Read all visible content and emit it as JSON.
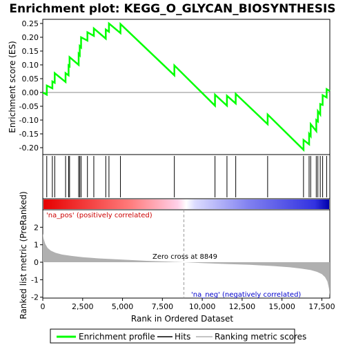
{
  "chart_data": {
    "type": "line",
    "title": "Enrichment plot: KEGG_O_GLYCAN_BIOSYNTHESIS",
    "x_label": "Rank in Ordered Dataset",
    "x_ticks": [
      0,
      2500,
      5000,
      7500,
      10000,
      12500,
      15000,
      17500
    ],
    "x_tick_labels": [
      "0",
      "2,500",
      "5,000",
      "7,500",
      "10,000",
      "12,500",
      "15,000",
      "17,500"
    ],
    "xlim": [
      0,
      18000
    ],
    "top_panel": {
      "ylabel": "Enrichment score (ES)",
      "ylim": [
        -0.225,
        0.265
      ],
      "y_ticks": [
        -0.2,
        -0.15,
        -0.1,
        -0.05,
        0.0,
        0.05,
        0.1,
        0.15,
        0.2,
        0.25
      ],
      "y_tick_labels": [
        "-0.20",
        "-0.15",
        "-0.10",
        "-0.05",
        "0.00",
        "0.05",
        "0.10",
        "0.15",
        "0.20",
        "0.25"
      ],
      "series": [
        {
          "name": "Enrichment profile",
          "color": "#00ff00",
          "x": [
            0,
            250,
            250,
            600,
            600,
            750,
            750,
            1430,
            1430,
            1620,
            1620,
            1680,
            1680,
            2250,
            2250,
            2320,
            2320,
            2400,
            2400,
            2800,
            2800,
            3200,
            3200,
            3950,
            3950,
            4150,
            4150,
            4870,
            4870,
            8250,
            8250,
            10800,
            10800,
            11550,
            11550,
            12100,
            12100,
            14100,
            14100,
            16350,
            16350,
            16700,
            16700,
            16800,
            16800,
            17150,
            17150,
            17250,
            17250,
            17400,
            17400,
            17550,
            17550,
            17800,
            17800,
            18000
          ],
          "y": [
            0.0,
            -0.008,
            0.025,
            0.015,
            0.04,
            0.035,
            0.07,
            0.038,
            0.07,
            0.062,
            0.098,
            0.095,
            0.128,
            0.1,
            0.14,
            0.135,
            0.168,
            0.163,
            0.2,
            0.188,
            0.218,
            0.205,
            0.232,
            0.195,
            0.228,
            0.22,
            0.25,
            0.215,
            0.248,
            0.062,
            0.098,
            -0.048,
            -0.008,
            -0.048,
            -0.012,
            -0.04,
            -0.005,
            -0.115,
            -0.08,
            -0.208,
            -0.172,
            -0.188,
            -0.15,
            -0.158,
            -0.115,
            -0.14,
            -0.1,
            -0.105,
            -0.068,
            -0.08,
            -0.042,
            -0.045,
            -0.01,
            -0.018,
            0.012,
            0.005
          ]
        }
      ]
    },
    "hits": {
      "name": "Hits",
      "color": "#000000",
      "x": [
        250,
        600,
        750,
        1430,
        1620,
        1680,
        2250,
        2320,
        2400,
        2800,
        3200,
        3950,
        4150,
        4870,
        8250,
        10800,
        11550,
        12100,
        14100,
        16350,
        16700,
        16800,
        17150,
        17250,
        17400,
        17550,
        17800
      ]
    },
    "bottom_panel": {
      "ylabel": "Ranked list metric (PreRanked)",
      "ylim": [
        -2.05,
        3.0
      ],
      "y_ticks": [
        -2,
        -1,
        0,
        1,
        2
      ],
      "y_tick_labels": [
        "-2",
        "-1",
        "0",
        "1",
        "2"
      ],
      "series": [
        {
          "name": "Ranking metric scores",
          "color": "#b0b0b0",
          "x": [
            0,
            50,
            150,
            300,
            500,
            800,
            1200,
            1800,
            2500,
            3500,
            5000,
            6500,
            8000,
            8849,
            10000,
            11500,
            13000,
            14500,
            15500,
            16200,
            16800,
            17200,
            17500,
            17700,
            17850,
            17950,
            18000
          ],
          "y": [
            1.65,
            1.35,
            1.05,
            0.82,
            0.66,
            0.54,
            0.44,
            0.36,
            0.29,
            0.22,
            0.15,
            0.08,
            0.03,
            0.0,
            -0.05,
            -0.1,
            -0.15,
            -0.22,
            -0.29,
            -0.36,
            -0.45,
            -0.55,
            -0.68,
            -0.85,
            -1.1,
            -1.5,
            -1.9
          ]
        }
      ],
      "zero_cross_label": "Zero cross at 8849",
      "zero_cross_x": 8849,
      "pos_label": "'na_pos' (positively correlated)",
      "neg_label": "'na_neg' (negatively correlated)"
    },
    "legend": [
      "Enrichment profile",
      "Hits",
      "Ranking metric scores"
    ],
    "legend_position": "bottom"
  }
}
